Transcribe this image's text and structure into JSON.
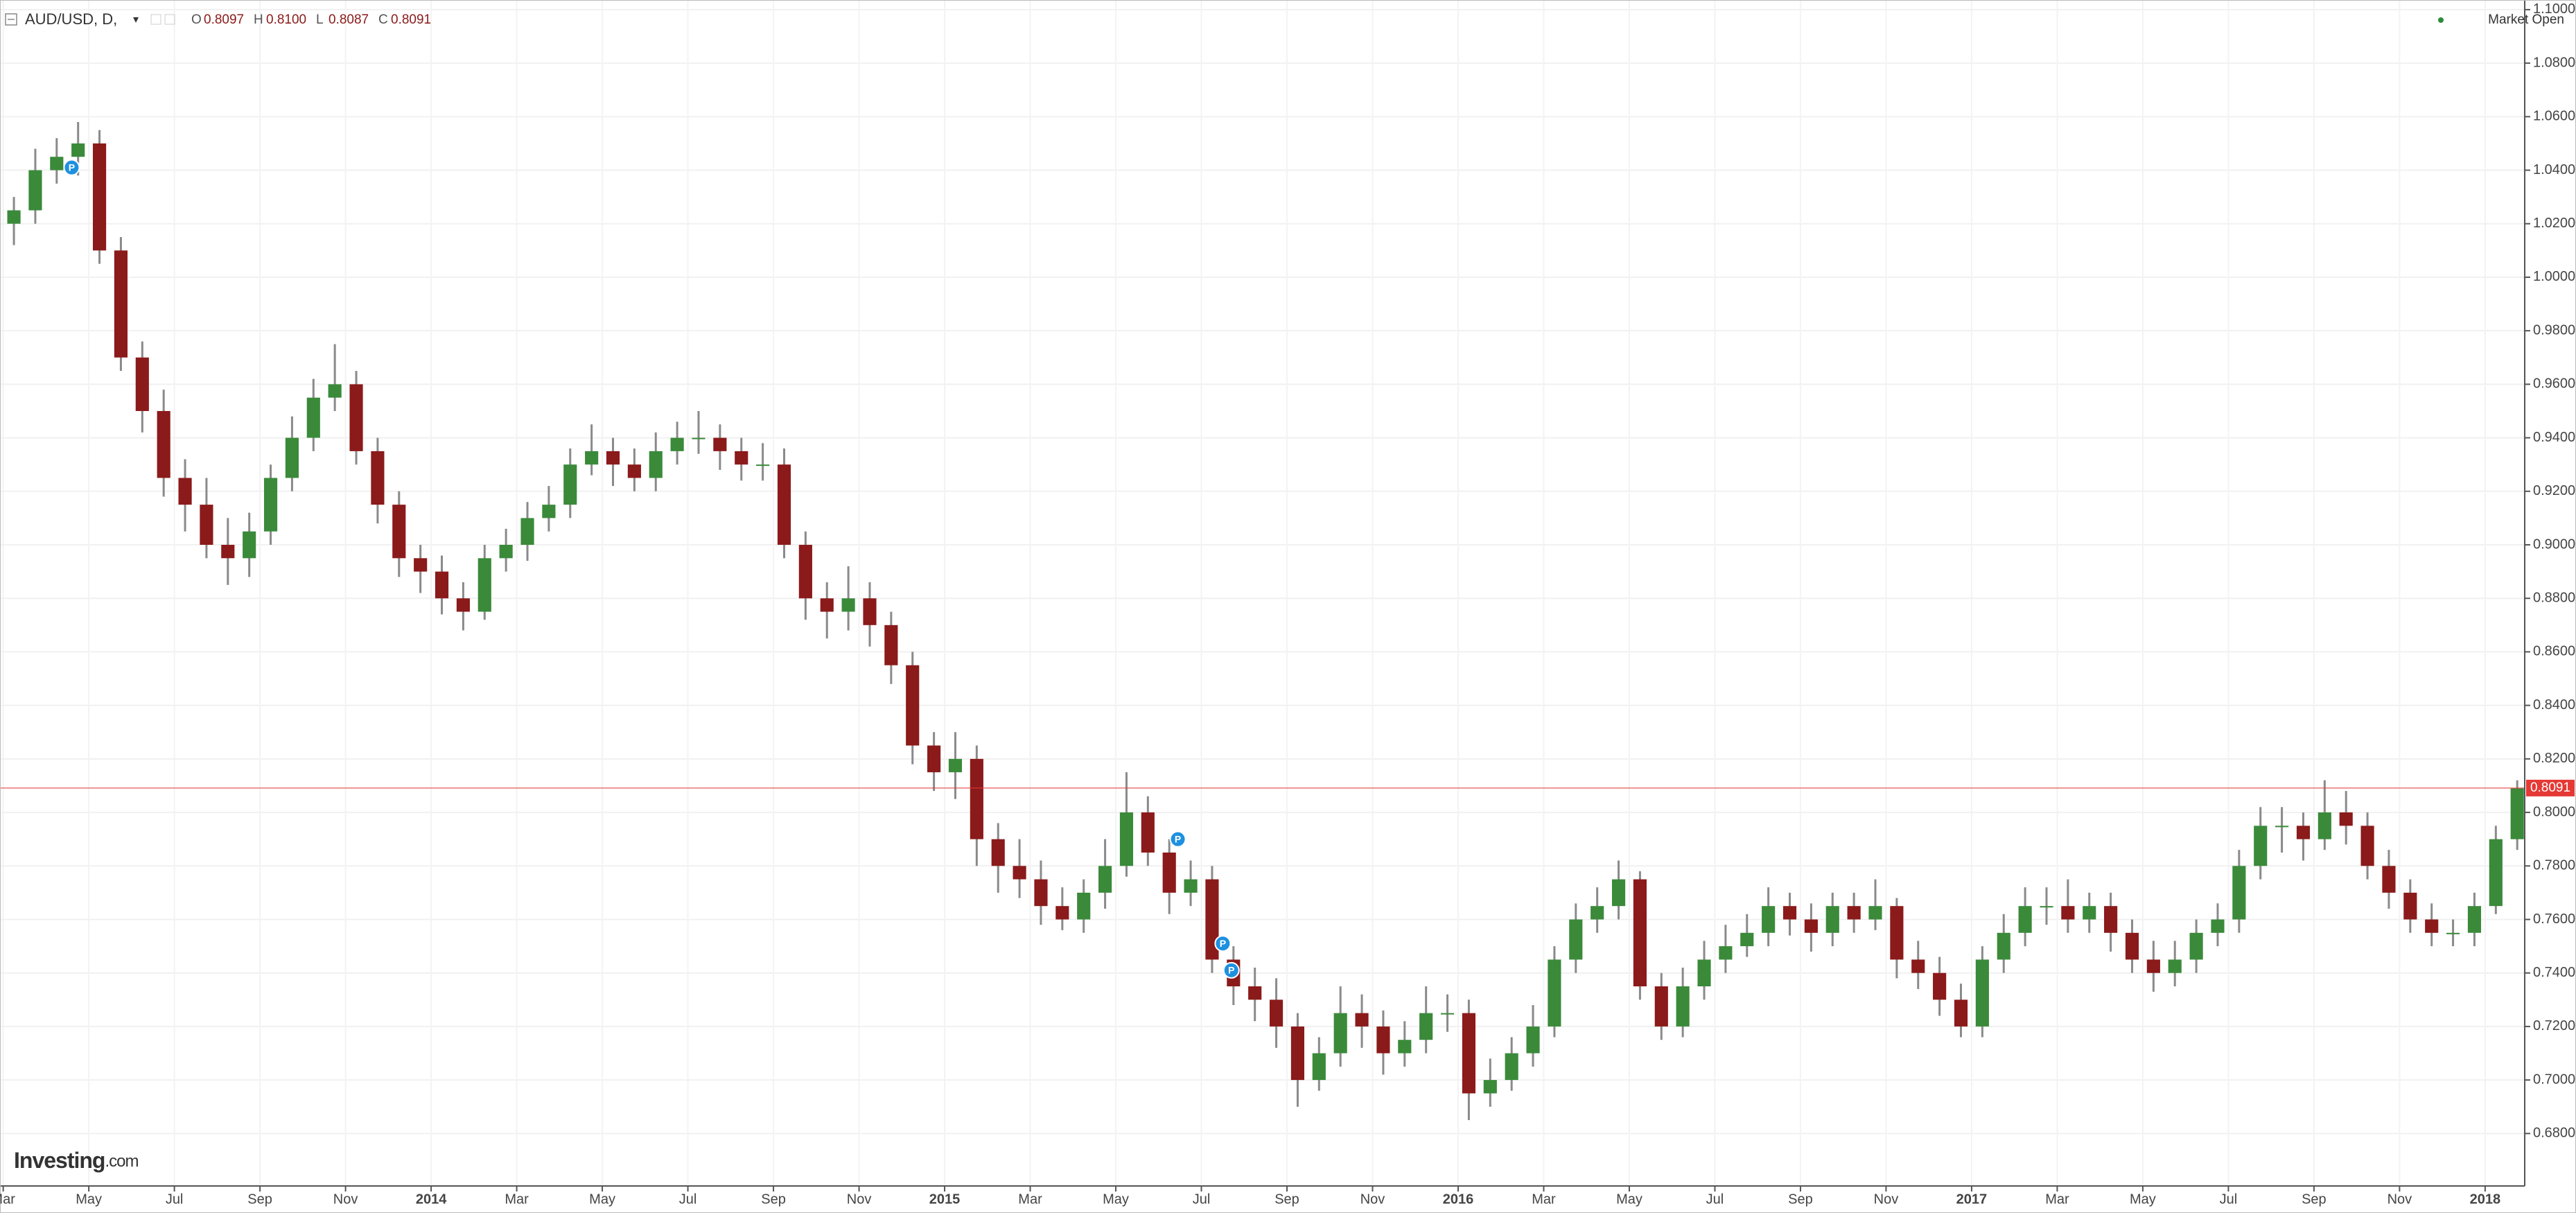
{
  "header": {
    "symbol": "AUD/USD, D,",
    "ohlc": [
      {
        "key": "O",
        "value": "0.8097"
      },
      {
        "key": "H",
        "value": "0.8100"
      },
      {
        "key": "L",
        "value": "0.8087"
      },
      {
        "key": "C",
        "value": "0.8091"
      }
    ],
    "status": "Market Open"
  },
  "logo": {
    "brand": "Investing",
    "suffix": ".com"
  },
  "chart_data": {
    "type": "candlestick",
    "up_color": "#3a8a3a",
    "down_color": "#8b1a1a",
    "wick_color": "#8a8a8a",
    "grid": true,
    "ylim": [
      0.6604,
      1.1036
    ],
    "yticks": [
      {
        "value": 0.68,
        "label": "0.6800"
      },
      {
        "value": 0.7,
        "label": "0.7000"
      },
      {
        "value": 0.72,
        "label": "0.7200"
      },
      {
        "value": 0.74,
        "label": "0.7400"
      },
      {
        "value": 0.76,
        "label": "0.7600"
      },
      {
        "value": 0.78,
        "label": "0.7800"
      },
      {
        "value": 0.8,
        "label": "0.8000"
      },
      {
        "value": 0.82,
        "label": "0.8200"
      },
      {
        "value": 0.84,
        "label": "0.8400"
      },
      {
        "value": 0.86,
        "label": "0.8600"
      },
      {
        "value": 0.88,
        "label": "0.8800"
      },
      {
        "value": 0.9,
        "label": "0.9000"
      },
      {
        "value": 0.92,
        "label": "0.9200"
      },
      {
        "value": 0.94,
        "label": "0.9400"
      },
      {
        "value": 0.96,
        "label": "0.9600"
      },
      {
        "value": 0.98,
        "label": "0.9800"
      },
      {
        "value": 1.0,
        "label": "1.0000"
      },
      {
        "value": 1.02,
        "label": "1.0200"
      },
      {
        "value": 1.04,
        "label": "1.0400"
      },
      {
        "value": 1.06,
        "label": "1.0600"
      },
      {
        "value": 1.08,
        "label": "1.0800"
      },
      {
        "value": 1.1,
        "label": "1.1000"
      }
    ],
    "xlim": [
      -0.15,
      117.85
    ],
    "xticks": [
      {
        "value": 0,
        "label": "Mar"
      },
      {
        "value": 4,
        "label": "May"
      },
      {
        "value": 8,
        "label": "Jul"
      },
      {
        "value": 12,
        "label": "Sep"
      },
      {
        "value": 16,
        "label": "Nov"
      },
      {
        "value": 20,
        "label": "2014"
      },
      {
        "value": 24,
        "label": "Mar"
      },
      {
        "value": 28,
        "label": "May"
      },
      {
        "value": 32,
        "label": "Jul"
      },
      {
        "value": 36,
        "label": "Sep"
      },
      {
        "value": 40,
        "label": "Nov"
      },
      {
        "value": 44,
        "label": "2015"
      },
      {
        "value": 48,
        "label": "Mar"
      },
      {
        "value": 52,
        "label": "May"
      },
      {
        "value": 56,
        "label": "Jul"
      },
      {
        "value": 60,
        "label": "Sep"
      },
      {
        "value": 64,
        "label": "Nov"
      },
      {
        "value": 68,
        "label": "2016"
      },
      {
        "value": 72,
        "label": "Mar"
      },
      {
        "value": 76,
        "label": "May"
      },
      {
        "value": 80,
        "label": "Jul"
      },
      {
        "value": 84,
        "label": "Sep"
      },
      {
        "value": 88,
        "label": "Nov"
      },
      {
        "value": 92,
        "label": "2017"
      },
      {
        "value": 96,
        "label": "Mar"
      },
      {
        "value": 100,
        "label": "May"
      },
      {
        "value": 104,
        "label": "Jul"
      },
      {
        "value": 108,
        "label": "Sep"
      },
      {
        "value": 112,
        "label": "Nov"
      },
      {
        "value": 116,
        "label": "2018"
      }
    ],
    "open": [
      1.02,
      1.025,
      1.04,
      1.045,
      1.05,
      1.01,
      0.97,
      0.95,
      0.925,
      0.915,
      0.9,
      0.895,
      0.905,
      0.925,
      0.94,
      0.955,
      0.96,
      0.935,
      0.915,
      0.895,
      0.89,
      0.88,
      0.875,
      0.895,
      0.9,
      0.91,
      0.915,
      0.93,
      0.935,
      0.93,
      0.925,
      0.935,
      0.94,
      0.94,
      0.935,
      0.93,
      0.93,
      0.9,
      0.88,
      0.875,
      0.88,
      0.87,
      0.855,
      0.825,
      0.815,
      0.82,
      0.79,
      0.78,
      0.775,
      0.765,
      0.76,
      0.77,
      0.78,
      0.8,
      0.785,
      0.77,
      0.775,
      0.745,
      0.735,
      0.73,
      0.72,
      0.7,
      0.71,
      0.725,
      0.72,
      0.71,
      0.715,
      0.725,
      0.725,
      0.695,
      0.7,
      0.71,
      0.72,
      0.745,
      0.76,
      0.765,
      0.775,
      0.735,
      0.72,
      0.735,
      0.745,
      0.75,
      0.755,
      0.765,
      0.76,
      0.755,
      0.765,
      0.76,
      0.765,
      0.745,
      0.74,
      0.73,
      0.72,
      0.745,
      0.755,
      0.765,
      0.765,
      0.76,
      0.765,
      0.755,
      0.745,
      0.74,
      0.745,
      0.755,
      0.76,
      0.78,
      0.795,
      0.795,
      0.79,
      0.8,
      0.795,
      0.78,
      0.77,
      0.76,
      0.755,
      0.755,
      0.765,
      0.79
    ],
    "high": [
      1.03,
      1.048,
      1.052,
      1.058,
      1.055,
      1.015,
      0.976,
      0.958,
      0.932,
      0.925,
      0.91,
      0.912,
      0.93,
      0.948,
      0.962,
      0.975,
      0.965,
      0.94,
      0.92,
      0.9,
      0.896,
      0.886,
      0.9,
      0.906,
      0.916,
      0.922,
      0.936,
      0.945,
      0.94,
      0.936,
      0.942,
      0.946,
      0.95,
      0.945,
      0.94,
      0.938,
      0.936,
      0.905,
      0.886,
      0.892,
      0.886,
      0.875,
      0.86,
      0.83,
      0.83,
      0.825,
      0.796,
      0.79,
      0.782,
      0.772,
      0.775,
      0.79,
      0.815,
      0.806,
      0.79,
      0.782,
      0.78,
      0.75,
      0.742,
      0.738,
      0.725,
      0.716,
      0.735,
      0.732,
      0.726,
      0.722,
      0.735,
      0.732,
      0.73,
      0.708,
      0.716,
      0.728,
      0.75,
      0.766,
      0.772,
      0.782,
      0.778,
      0.74,
      0.742,
      0.752,
      0.758,
      0.762,
      0.772,
      0.77,
      0.766,
      0.77,
      0.77,
      0.775,
      0.768,
      0.752,
      0.746,
      0.736,
      0.75,
      0.762,
      0.772,
      0.772,
      0.775,
      0.77,
      0.77,
      0.76,
      0.752,
      0.752,
      0.76,
      0.766,
      0.786,
      0.802,
      0.802,
      0.8,
      0.812,
      0.808,
      0.8,
      0.786,
      0.775,
      0.766,
      0.76,
      0.77,
      0.795,
      0.812
    ],
    "low": [
      1.012,
      1.02,
      1.035,
      1.038,
      1.005,
      0.965,
      0.942,
      0.918,
      0.905,
      0.895,
      0.885,
      0.888,
      0.9,
      0.92,
      0.935,
      0.95,
      0.93,
      0.908,
      0.888,
      0.882,
      0.874,
      0.868,
      0.872,
      0.89,
      0.894,
      0.905,
      0.91,
      0.926,
      0.922,
      0.92,
      0.92,
      0.93,
      0.934,
      0.928,
      0.924,
      0.924,
      0.895,
      0.872,
      0.865,
      0.868,
      0.862,
      0.848,
      0.818,
      0.808,
      0.805,
      0.78,
      0.77,
      0.768,
      0.758,
      0.756,
      0.755,
      0.764,
      0.776,
      0.78,
      0.762,
      0.765,
      0.74,
      0.728,
      0.722,
      0.712,
      0.69,
      0.696,
      0.705,
      0.712,
      0.702,
      0.705,
      0.71,
      0.718,
      0.685,
      0.69,
      0.696,
      0.705,
      0.716,
      0.74,
      0.755,
      0.76,
      0.73,
      0.715,
      0.716,
      0.73,
      0.74,
      0.746,
      0.75,
      0.754,
      0.748,
      0.75,
      0.755,
      0.756,
      0.738,
      0.734,
      0.724,
      0.716,
      0.716,
      0.74,
      0.75,
      0.758,
      0.755,
      0.755,
      0.748,
      0.74,
      0.733,
      0.735,
      0.74,
      0.75,
      0.755,
      0.775,
      0.785,
      0.782,
      0.786,
      0.788,
      0.775,
      0.764,
      0.755,
      0.75,
      0.75,
      0.75,
      0.762,
      0.786
    ],
    "close": [
      1.025,
      1.04,
      1.045,
      1.05,
      1.01,
      0.97,
      0.95,
      0.925,
      0.915,
      0.9,
      0.895,
      0.905,
      0.925,
      0.94,
      0.955,
      0.96,
      0.935,
      0.915,
      0.895,
      0.89,
      0.88,
      0.875,
      0.895,
      0.9,
      0.91,
      0.915,
      0.93,
      0.935,
      0.93,
      0.925,
      0.935,
      0.94,
      0.94,
      0.935,
      0.93,
      0.93,
      0.9,
      0.88,
      0.875,
      0.88,
      0.87,
      0.855,
      0.825,
      0.815,
      0.82,
      0.79,
      0.78,
      0.775,
      0.765,
      0.76,
      0.77,
      0.78,
      0.8,
      0.785,
      0.77,
      0.775,
      0.745,
      0.735,
      0.73,
      0.72,
      0.7,
      0.71,
      0.725,
      0.72,
      0.71,
      0.715,
      0.725,
      0.725,
      0.695,
      0.7,
      0.71,
      0.72,
      0.745,
      0.76,
      0.765,
      0.775,
      0.735,
      0.72,
      0.735,
      0.745,
      0.75,
      0.755,
      0.765,
      0.76,
      0.755,
      0.765,
      0.76,
      0.765,
      0.745,
      0.74,
      0.73,
      0.72,
      0.745,
      0.755,
      0.765,
      0.765,
      0.76,
      0.765,
      0.755,
      0.745,
      0.74,
      0.745,
      0.755,
      0.76,
      0.78,
      0.795,
      0.795,
      0.79,
      0.8,
      0.795,
      0.78,
      0.77,
      0.76,
      0.755,
      0.755,
      0.765,
      0.79,
      0.809
    ],
    "current_price": 0.8091,
    "current_price_color": "#e53935",
    "markers": [
      {
        "label": "P",
        "x": 3.2,
        "y": 1.041
      },
      {
        "label": "P",
        "x": 54.9,
        "y": 0.79
      },
      {
        "label": "P",
        "x": 57.0,
        "y": 0.751
      },
      {
        "label": "P",
        "x": 57.4,
        "y": 0.741
      }
    ],
    "marker_color": "#1e90e0"
  }
}
